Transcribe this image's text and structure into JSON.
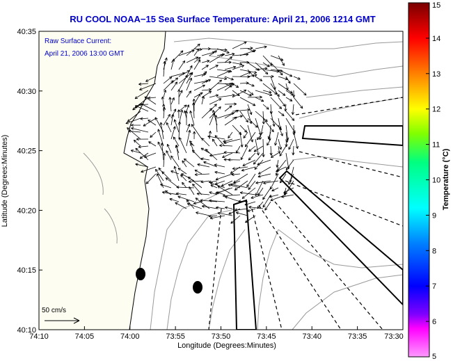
{
  "title": "RU COOL  NOAA−15  Sea Surface Temperature:  April 21, 2006 1214 GMT",
  "overlay": {
    "line1": "Raw Surface Current:",
    "line2": "April 21, 2006 13:00 GMT"
  },
  "scale_label": "50 cm/s",
  "x_axis": {
    "label": "Longitude (Degrees:Minutes)",
    "ticks": [
      "74:10",
      "74:05",
      "74:00",
      "73:55",
      "73:50",
      "73:45",
      "73:40",
      "73:35",
      "73:30"
    ]
  },
  "y_axis": {
    "label": "Latitude (Degrees:Minutes)",
    "ticks": [
      "40:35",
      "40:30",
      "40:25",
      "40:20",
      "40:15",
      "40:10"
    ]
  },
  "colorbar": {
    "label": "Temperature (°C)",
    "ticks": [
      "15",
      "14",
      "13",
      "12",
      "11",
      "10",
      "9",
      "8",
      "7",
      "6",
      "5"
    ],
    "colors": [
      "#ff00ff",
      "#0000ff",
      "#00ffff",
      "#00ff00",
      "#ffff00",
      "#ff8000",
      "#ff0000",
      "#800000"
    ]
  },
  "map_colors": {
    "land": "#fdfdf2",
    "coast": "#000000",
    "contour": "#999999",
    "vectors": "#000000"
  }
}
